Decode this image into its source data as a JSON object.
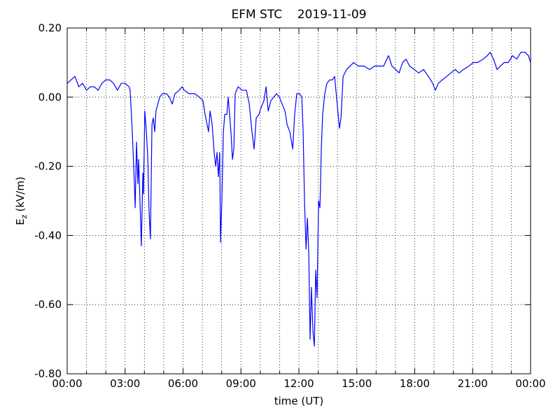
{
  "chart_data": {
    "type": "line",
    "title": "EFM STC    2019-11-09",
    "x_label": "time (UT)",
    "y_label": [
      "E",
      "z",
      "(kV/m)"
    ],
    "xlim": [
      0,
      24
    ],
    "xticks": [
      {
        "value": 0,
        "label": "00:00"
      },
      {
        "value": 3,
        "label": "03:00"
      },
      {
        "value": 6,
        "label": "06:00"
      },
      {
        "value": 9,
        "label": "09:00"
      },
      {
        "value": 12,
        "label": "12:00"
      },
      {
        "value": 15,
        "label": "15:00"
      },
      {
        "value": 18,
        "label": "18:00"
      },
      {
        "value": 21,
        "label": "21:00"
      },
      {
        "value": 24,
        "label": "00:00"
      }
    ],
    "xminor_ticks": [
      1,
      2,
      4,
      5,
      7,
      8,
      10,
      11,
      13,
      14,
      16,
      17,
      19,
      20,
      22,
      23
    ],
    "ylim": [
      -0.8,
      0.2
    ],
    "yticks": [
      {
        "value": -0.8,
        "label": "-0.80"
      },
      {
        "value": -0.6,
        "label": "-0.60"
      },
      {
        "value": -0.4,
        "label": "-0.40"
      },
      {
        "value": -0.2,
        "label": "-0.20"
      },
      {
        "value": 0,
        "label": "0.00"
      },
      {
        "value": 0.2,
        "label": "0.20"
      }
    ],
    "grid": true,
    "series": [
      {
        "color": "#0000ff",
        "x": [
          0.0,
          0.2,
          0.4,
          0.6,
          0.8,
          1.0,
          1.2,
          1.4,
          1.6,
          1.8,
          2.0,
          2.2,
          2.4,
          2.6,
          2.8,
          3.0,
          3.2,
          3.26,
          3.37,
          3.48,
          3.52,
          3.59,
          3.66,
          3.7,
          3.77,
          3.84,
          3.92,
          3.95,
          4.02,
          4.1,
          4.17,
          4.24,
          4.31,
          4.39,
          4.46,
          4.53,
          4.6,
          4.79,
          4.93,
          5.15,
          5.29,
          5.44,
          5.58,
          5.8,
          5.95,
          6.06,
          6.31,
          6.6,
          6.85,
          7.03,
          7.14,
          7.25,
          7.32,
          7.4,
          7.51,
          7.61,
          7.69,
          7.76,
          7.83,
          7.9,
          7.94,
          8.01,
          8.09,
          8.16,
          8.27,
          8.34,
          8.48,
          8.56,
          8.63,
          8.7,
          8.85,
          9.06,
          9.28,
          9.43,
          9.57,
          9.68,
          9.79,
          9.93,
          10.04,
          10.19,
          10.3,
          10.41,
          10.55,
          10.7,
          10.84,
          10.99,
          11.13,
          11.28,
          11.39,
          11.53,
          11.68,
          11.78,
          11.89,
          12.04,
          12.15,
          12.22,
          12.29,
          12.37,
          12.44,
          12.51,
          12.58,
          12.65,
          12.73,
          12.8,
          12.87,
          12.94,
          13.02,
          13.09,
          13.16,
          13.23,
          13.34,
          13.45,
          13.6,
          13.74,
          13.85,
          14.0,
          14.1,
          14.18,
          14.29,
          14.47,
          14.65,
          14.83,
          15.08,
          15.37,
          15.66,
          15.92,
          16.17,
          16.39,
          16.64,
          16.82,
          17.01,
          17.19,
          17.37,
          17.55,
          17.73,
          17.98,
          18.2,
          18.46,
          18.71,
          18.93,
          19.07,
          19.22,
          19.43,
          19.65,
          19.87,
          20.09,
          20.3,
          20.52,
          20.81,
          21.03,
          21.25,
          21.54,
          21.76,
          21.9,
          22.08,
          22.26,
          22.44,
          22.63,
          22.84,
          23.06,
          23.28,
          23.5,
          23.71,
          23.89,
          24.0
        ],
        "values": [
          0.04,
          0.05,
          0.06,
          0.03,
          0.04,
          0.02,
          0.03,
          0.03,
          0.02,
          0.04,
          0.05,
          0.05,
          0.04,
          0.02,
          0.04,
          0.04,
          0.03,
          0.02,
          -0.1,
          -0.25,
          -0.32,
          -0.13,
          -0.25,
          -0.18,
          -0.3,
          -0.43,
          -0.22,
          -0.28,
          -0.04,
          -0.1,
          -0.17,
          -0.33,
          -0.41,
          -0.08,
          -0.06,
          -0.1,
          -0.04,
          0.0,
          0.01,
          0.01,
          0.0,
          -0.02,
          0.01,
          0.02,
          0.03,
          0.02,
          0.01,
          0.01,
          0.0,
          -0.01,
          -0.05,
          -0.08,
          -0.1,
          -0.04,
          -0.08,
          -0.16,
          -0.2,
          -0.16,
          -0.23,
          -0.16,
          -0.42,
          -0.3,
          -0.1,
          -0.05,
          -0.05,
          0.0,
          -0.1,
          -0.18,
          -0.15,
          0.01,
          0.03,
          0.02,
          0.02,
          -0.02,
          -0.1,
          -0.15,
          -0.06,
          -0.05,
          -0.03,
          -0.01,
          0.03,
          -0.04,
          -0.01,
          0.0,
          0.01,
          0.0,
          -0.02,
          -0.04,
          -0.08,
          -0.1,
          -0.15,
          -0.05,
          0.01,
          0.01,
          0.0,
          -0.1,
          -0.3,
          -0.44,
          -0.35,
          -0.45,
          -0.7,
          -0.55,
          -0.68,
          -0.72,
          -0.5,
          -0.58,
          -0.3,
          -0.32,
          -0.15,
          -0.05,
          0.01,
          0.04,
          0.05,
          0.05,
          0.06,
          -0.03,
          -0.09,
          -0.06,
          0.06,
          0.08,
          0.09,
          0.1,
          0.09,
          0.09,
          0.08,
          0.09,
          0.09,
          0.09,
          0.12,
          0.09,
          0.08,
          0.07,
          0.1,
          0.11,
          0.09,
          0.08,
          0.07,
          0.08,
          0.06,
          0.04,
          0.02,
          0.04,
          0.05,
          0.06,
          0.07,
          0.08,
          0.07,
          0.08,
          0.09,
          0.1,
          0.1,
          0.11,
          0.12,
          0.13,
          0.11,
          0.08,
          0.09,
          0.1,
          0.1,
          0.12,
          0.11,
          0.13,
          0.13,
          0.12,
          0.1
        ]
      }
    ]
  }
}
